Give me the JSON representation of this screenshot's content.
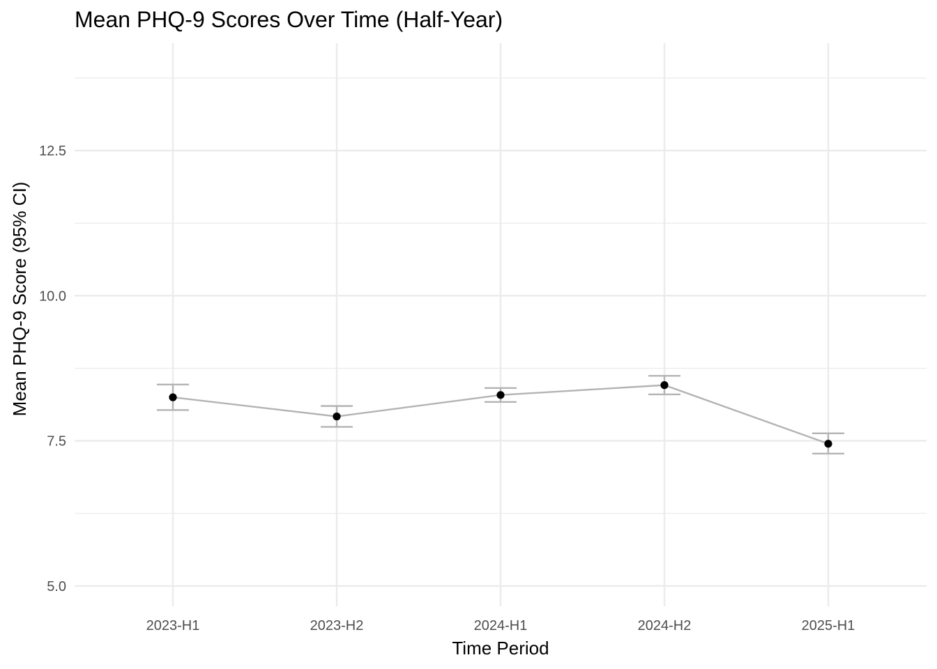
{
  "chart_data": {
    "type": "line",
    "title": "Mean PHQ-9 Scores Over Time (Half-Year)",
    "xlabel": "Time Period",
    "ylabel": "Mean PHQ-9 Score (95% CI)",
    "categories": [
      "2023-H1",
      "2023-H2",
      "2024-H1",
      "2024-H2",
      "2025-H1"
    ],
    "series": [
      {
        "values": [
          8.25,
          7.92,
          8.29,
          8.46,
          7.45
        ],
        "ci_lower": [
          8.03,
          7.74,
          8.17,
          8.3,
          7.28
        ],
        "ci_upper": [
          8.47,
          8.1,
          8.41,
          8.62,
          7.63
        ]
      }
    ],
    "ylim": [
      4.65,
      14.35
    ],
    "yticks": [
      5.0,
      7.5,
      10.0,
      12.5
    ],
    "yticks_labels": [
      "5.0",
      "7.5",
      "10.0",
      "12.5"
    ],
    "y_minor_ticks": [
      6.25,
      8.75,
      11.25,
      13.75
    ],
    "grid": true,
    "colors": {
      "line": "#b3b3b3",
      "errorbar": "#b3b3b3",
      "point": "#000000",
      "grid": "#ebebeb"
    }
  }
}
